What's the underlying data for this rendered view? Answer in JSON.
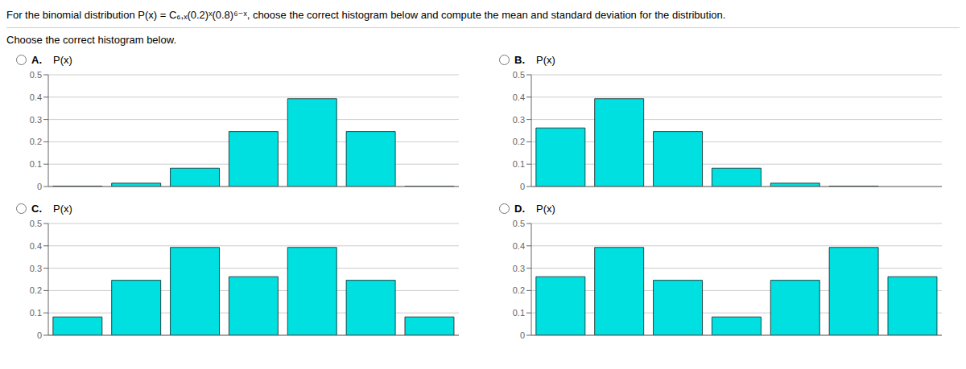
{
  "title": "For the binomial distribution P(x) = C₆,ₓ(0.2)ˣ(0.8)⁶⁻ˣ, choose the correct histogram below and compute the mean and standard deviation for the distribution.",
  "subtitle": "Choose the correct histogram below.",
  "chart_data": [
    {
      "type": "bar",
      "title": "A.",
      "y_label": "P(x)",
      "categories": [
        null,
        null,
        null,
        null,
        null,
        null,
        null
      ],
      "values": [
        0.002,
        0.015,
        0.082,
        0.246,
        0.393,
        0.246,
        0.001
      ],
      "color": "#00E0E0",
      "ylim": [
        0,
        0.5
      ],
      "yticks": [
        0,
        0.1,
        0.2,
        0.3,
        0.4,
        0.5
      ],
      "grid": true,
      "tick_labels": "y"
    },
    {
      "type": "bar",
      "title": "B.",
      "y_label": "P(x)",
      "categories": [
        null,
        null,
        null,
        null,
        null,
        null,
        null
      ],
      "values": [
        0.262,
        0.393,
        0.246,
        0.082,
        0.015,
        0.002,
        0.0
      ],
      "color": "#00E0E0",
      "ylim": [
        0,
        0.5
      ],
      "yticks": [
        0,
        0.1,
        0.2,
        0.3,
        0.4,
        0.5
      ],
      "grid": true,
      "tick_labels": "y"
    },
    {
      "type": "bar",
      "title": "C.",
      "y_label": "P(x)",
      "categories": [
        null,
        null,
        null,
        null,
        null,
        null,
        null
      ],
      "values": [
        0.082,
        0.246,
        0.393,
        0.262,
        0.393,
        0.246,
        0.082
      ],
      "color": "#00E0E0",
      "ylim": [
        0,
        0.5
      ],
      "yticks": [
        0,
        0.1,
        0.2,
        0.3,
        0.4,
        0.5
      ],
      "grid": true,
      "tick_labels": "y"
    },
    {
      "type": "bar",
      "title": "D.",
      "y_label": "P(x)",
      "categories": [
        null,
        null,
        null,
        null,
        null,
        null,
        null
      ],
      "values": [
        0.262,
        0.393,
        0.246,
        0.082,
        0.246,
        0.393,
        0.262
      ],
      "color": "#00E0E0",
      "ylim": [
        0,
        0.5
      ],
      "yticks": [
        0,
        0.1,
        0.2,
        0.3,
        0.4,
        0.5
      ],
      "grid": true,
      "tick_labels": "y"
    }
  ]
}
